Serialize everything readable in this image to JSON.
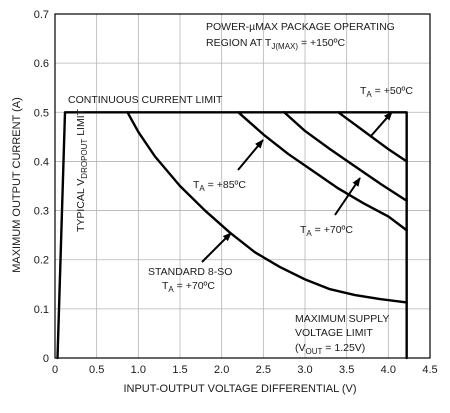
{
  "chart_data": {
    "type": "line",
    "title": "",
    "xlabel": "INPUT-OUTPUT VOLTAGE DIFFERENTIAL (V)",
    "ylabel": "MAXIMUM OUTPUT CURRENT (A)",
    "xlim": [
      0,
      4.5
    ],
    "ylim": [
      0,
      0.7
    ],
    "x_ticks": [
      "0",
      "0.5",
      "1.0",
      "1.5",
      "2.0",
      "2.5",
      "3.0",
      "3.5",
      "4.0",
      "4.5"
    ],
    "y_ticks": [
      "0",
      "0.1",
      "0.2",
      "0.3",
      "0.4",
      "0.5",
      "0.6",
      "0.7"
    ],
    "grid": true,
    "line_color": "#000000",
    "series": [
      {
        "key": "outline",
        "name": "",
        "x": [
          0.03,
          0.12,
          4.22,
          4.22
        ],
        "y": [
          0,
          0.5,
          0.5,
          0
        ]
      },
      {
        "key": "std8so",
        "name": "",
        "x": [
          0.87,
          1.0,
          1.2,
          1.5,
          1.8,
          2.1,
          2.4,
          2.7,
          3.0,
          3.3,
          3.6,
          3.9,
          4.22
        ],
        "y": [
          0.5,
          0.46,
          0.41,
          0.35,
          0.3,
          0.255,
          0.215,
          0.185,
          0.16,
          0.14,
          0.128,
          0.12,
          0.113
        ]
      },
      {
        "key": "ta85",
        "name": "",
        "x": [
          2.2,
          2.5,
          2.8,
          3.1,
          3.4,
          3.7,
          4.0,
          4.22
        ],
        "y": [
          0.5,
          0.455,
          0.415,
          0.38,
          0.345,
          0.315,
          0.288,
          0.26
        ]
      },
      {
        "key": "ta70",
        "name": "",
        "x": [
          2.75,
          3.0,
          3.3,
          3.6,
          3.9,
          4.22
        ],
        "y": [
          0.5,
          0.462,
          0.425,
          0.39,
          0.355,
          0.32
        ]
      },
      {
        "key": "ta50",
        "name": "",
        "x": [
          3.4,
          3.6,
          3.8,
          4.0,
          4.22
        ],
        "y": [
          0.5,
          0.475,
          0.45,
          0.425,
          0.4
        ]
      }
    ],
    "annotations": {
      "package_title_1": "POWER-µMAX PACKAGE OPERATING",
      "package_title_2_pre": "REGION AT T",
      "package_title_2_sub": "J(MAX)",
      "package_title_2_post": " = +150ºC",
      "continuous_limit": "CONTINUOUS CURRENT LIMIT",
      "dropout_pre": "TYPICAL V",
      "dropout_sub": "DROPOUT",
      "dropout_post": " LIMIT",
      "ta_t": "T",
      "ta_sub": "A",
      "ta50": " = +50ºC",
      "ta85": " = +85ºC",
      "ta70": " = +70ºC",
      "std8so_1": "STANDARD 8-SO",
      "std8so_2": " = +70ºC",
      "supply_1": "MAXIMUM SUPPLY",
      "supply_2": "VOLTAGE LIMIT",
      "supply_3_pre": "(V",
      "supply_3_sub": "OUT",
      "supply_3_post": " = 1.25V)"
    }
  }
}
